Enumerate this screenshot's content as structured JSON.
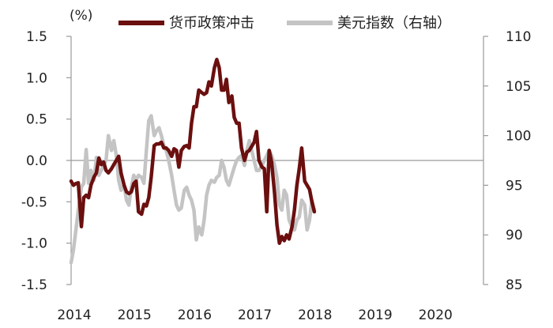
{
  "chart_data": {
    "type": "line",
    "unit_label": "(%)",
    "x_tick_labels": [
      "2014",
      "2015",
      "2016",
      "2017",
      "2018",
      "2019",
      "2020"
    ],
    "y_left": {
      "ylim": [
        -1.5,
        1.5
      ],
      "ticks": [
        1.5,
        1.0,
        0.5,
        0.0,
        -0.5,
        -1.0,
        -1.5
      ],
      "tick_labels": [
        "1.5",
        "1.0",
        "0.5",
        "0.0",
        "-0.5",
        "-1.0",
        "-1.5"
      ]
    },
    "y_right": {
      "ylim": [
        85,
        110
      ],
      "ticks": [
        110,
        105,
        100,
        95,
        90,
        85
      ],
      "tick_labels": [
        "110",
        "105",
        "100",
        "95",
        "90",
        "85"
      ]
    },
    "grid": false,
    "zero_line": true,
    "legend_position": "top",
    "series": [
      {
        "name": "货币政策冲击",
        "axis": "left",
        "color": "#6b0f0f",
        "points": [
          [
            2014.0,
            -0.25
          ],
          [
            2014.04,
            -0.3
          ],
          [
            2014.08,
            -0.28
          ],
          [
            2014.12,
            -0.27
          ],
          [
            2014.17,
            -0.8
          ],
          [
            2014.21,
            -0.45
          ],
          [
            2014.25,
            -0.42
          ],
          [
            2014.29,
            -0.45
          ],
          [
            2014.33,
            -0.3
          ],
          [
            2014.38,
            -0.2
          ],
          [
            2014.42,
            -0.15
          ],
          [
            2014.46,
            0.03
          ],
          [
            2014.5,
            -0.05
          ],
          [
            2014.54,
            -0.02
          ],
          [
            2014.58,
            -0.12
          ],
          [
            2014.62,
            -0.15
          ],
          [
            2014.67,
            -0.1
          ],
          [
            2014.71,
            -0.05
          ],
          [
            2014.75,
            0.0
          ],
          [
            2014.79,
            0.05
          ],
          [
            2014.83,
            -0.15
          ],
          [
            2014.88,
            -0.3
          ],
          [
            2014.92,
            -0.38
          ],
          [
            2014.96,
            -0.4
          ],
          [
            2015.0,
            -0.38
          ],
          [
            2015.04,
            -0.28
          ],
          [
            2015.08,
            -0.25
          ],
          [
            2015.12,
            -0.62
          ],
          [
            2015.17,
            -0.65
          ],
          [
            2015.21,
            -0.53
          ],
          [
            2015.25,
            -0.55
          ],
          [
            2015.29,
            -0.45
          ],
          [
            2015.33,
            -0.2
          ],
          [
            2015.38,
            0.18
          ],
          [
            2015.42,
            0.2
          ],
          [
            2015.46,
            0.2
          ],
          [
            2015.5,
            0.22
          ],
          [
            2015.54,
            0.15
          ],
          [
            2015.58,
            0.15
          ],
          [
            2015.62,
            0.12
          ],
          [
            2015.67,
            0.05
          ],
          [
            2015.71,
            0.14
          ],
          [
            2015.75,
            0.12
          ],
          [
            2015.79,
            -0.08
          ],
          [
            2015.83,
            0.12
          ],
          [
            2015.88,
            0.17
          ],
          [
            2015.92,
            0.18
          ],
          [
            2015.96,
            0.15
          ],
          [
            2016.0,
            0.45
          ],
          [
            2016.04,
            0.65
          ],
          [
            2016.08,
            0.65
          ],
          [
            2016.12,
            0.85
          ],
          [
            2016.17,
            0.82
          ],
          [
            2016.21,
            0.8
          ],
          [
            2016.25,
            0.82
          ],
          [
            2016.29,
            0.95
          ],
          [
            2016.33,
            0.9
          ],
          [
            2016.38,
            1.12
          ],
          [
            2016.42,
            1.22
          ],
          [
            2016.46,
            1.12
          ],
          [
            2016.5,
            0.85
          ],
          [
            2016.54,
            0.85
          ],
          [
            2016.58,
            0.98
          ],
          [
            2016.62,
            0.7
          ],
          [
            2016.67,
            0.78
          ],
          [
            2016.71,
            0.52
          ],
          [
            2016.75,
            0.45
          ],
          [
            2016.79,
            0.45
          ],
          [
            2016.83,
            0.15
          ],
          [
            2016.88,
            0.0
          ],
          [
            2016.92,
            0.1
          ],
          [
            2016.96,
            0.12
          ],
          [
            2017.0,
            0.17
          ],
          [
            2017.04,
            0.22
          ],
          [
            2017.08,
            0.35
          ],
          [
            2017.12,
            0.0
          ],
          [
            2017.17,
            -0.08
          ],
          [
            2017.21,
            -0.1
          ],
          [
            2017.25,
            -0.62
          ],
          [
            2017.29,
            0.12
          ],
          [
            2017.33,
            -0.02
          ],
          [
            2017.38,
            -0.4
          ],
          [
            2017.42,
            -0.78
          ],
          [
            2017.46,
            -1.0
          ],
          [
            2017.5,
            -0.92
          ],
          [
            2017.54,
            -0.97
          ],
          [
            2017.58,
            -0.9
          ],
          [
            2017.62,
            -0.95
          ],
          [
            2017.67,
            -0.8
          ],
          [
            2017.71,
            -0.6
          ],
          [
            2017.75,
            -0.3
          ],
          [
            2017.79,
            -0.1
          ],
          [
            2017.83,
            0.15
          ],
          [
            2017.88,
            -0.25
          ],
          [
            2017.92,
            -0.3
          ],
          [
            2017.96,
            -0.35
          ],
          [
            2018.0,
            -0.5
          ],
          [
            2018.04,
            -0.62
          ]
        ]
      },
      {
        "name": "美元指数（右轴）",
        "axis": "right",
        "color": "#c4c4c4",
        "points": [
          [
            2014.0,
            87.2
          ],
          [
            2014.04,
            88.5
          ],
          [
            2014.08,
            90.5
          ],
          [
            2014.12,
            92.5
          ],
          [
            2014.17,
            94.8
          ],
          [
            2014.21,
            95.2
          ],
          [
            2014.25,
            98.6
          ],
          [
            2014.29,
            95.2
          ],
          [
            2014.33,
            96.5
          ],
          [
            2014.38,
            95.5
          ],
          [
            2014.42,
            97.8
          ],
          [
            2014.46,
            96.0
          ],
          [
            2014.5,
            96.5
          ],
          [
            2014.54,
            97.0
          ],
          [
            2014.58,
            97.5
          ],
          [
            2014.62,
            100.0
          ],
          [
            2014.67,
            98.5
          ],
          [
            2014.71,
            99.5
          ],
          [
            2014.75,
            98.0
          ],
          [
            2014.79,
            95.5
          ],
          [
            2014.83,
            94.5
          ],
          [
            2014.88,
            95.0
          ],
          [
            2014.92,
            93.5
          ],
          [
            2014.96,
            93.0
          ],
          [
            2015.0,
            94.8
          ],
          [
            2015.04,
            96.0
          ],
          [
            2015.08,
            95.5
          ],
          [
            2015.12,
            96.0
          ],
          [
            2015.17,
            95.8
          ],
          [
            2015.21,
            95.2
          ],
          [
            2015.25,
            98.5
          ],
          [
            2015.29,
            101.5
          ],
          [
            2015.33,
            102.0
          ],
          [
            2015.38,
            100.0
          ],
          [
            2015.42,
            100.5
          ],
          [
            2015.46,
            100.8
          ],
          [
            2015.5,
            100.0
          ],
          [
            2015.54,
            99.0
          ],
          [
            2015.58,
            98.5
          ],
          [
            2015.62,
            97.5
          ],
          [
            2015.67,
            96.0
          ],
          [
            2015.71,
            94.5
          ],
          [
            2015.75,
            93.0
          ],
          [
            2015.79,
            92.5
          ],
          [
            2015.83,
            92.7
          ],
          [
            2015.88,
            94.5
          ],
          [
            2015.92,
            94.8
          ],
          [
            2015.96,
            94.0
          ],
          [
            2016.0,
            93.5
          ],
          [
            2016.04,
            92.5
          ],
          [
            2016.08,
            89.5
          ],
          [
            2016.12,
            90.8
          ],
          [
            2016.17,
            90.0
          ],
          [
            2016.21,
            91.5
          ],
          [
            2016.25,
            94.0
          ],
          [
            2016.29,
            95.0
          ],
          [
            2016.33,
            95.5
          ],
          [
            2016.38,
            95.3
          ],
          [
            2016.42,
            95.8
          ],
          [
            2016.46,
            96.0
          ],
          [
            2016.5,
            97.5
          ],
          [
            2016.54,
            96.8
          ],
          [
            2016.58,
            95.5
          ],
          [
            2016.62,
            95.0
          ],
          [
            2016.67,
            96.0
          ],
          [
            2016.71,
            96.8
          ],
          [
            2016.75,
            97.5
          ],
          [
            2016.79,
            97.8
          ],
          [
            2016.83,
            98.0
          ],
          [
            2016.88,
            97.0
          ],
          [
            2016.92,
            98.5
          ],
          [
            2016.96,
            99.5
          ],
          [
            2017.0,
            98.5
          ],
          [
            2017.04,
            97.5
          ],
          [
            2017.08,
            96.5
          ],
          [
            2017.12,
            96.5
          ],
          [
            2017.17,
            97.0
          ],
          [
            2017.21,
            97.5
          ],
          [
            2017.25,
            98.0
          ],
          [
            2017.29,
            98.5
          ],
          [
            2017.33,
            98.0
          ],
          [
            2017.38,
            97.0
          ],
          [
            2017.42,
            95.8
          ],
          [
            2017.46,
            93.0
          ],
          [
            2017.5,
            92.5
          ],
          [
            2017.54,
            94.5
          ],
          [
            2017.58,
            94.0
          ],
          [
            2017.62,
            91.5
          ],
          [
            2017.67,
            90.8
          ],
          [
            2017.71,
            90.5
          ],
          [
            2017.75,
            91.5
          ],
          [
            2017.79,
            91.8
          ],
          [
            2017.83,
            93.5
          ],
          [
            2017.88,
            93.0
          ],
          [
            2017.92,
            90.5
          ],
          [
            2017.96,
            91.5
          ],
          [
            2018.0,
            93.5
          ],
          [
            2018.04,
            92.5
          ]
        ]
      }
    ]
  }
}
